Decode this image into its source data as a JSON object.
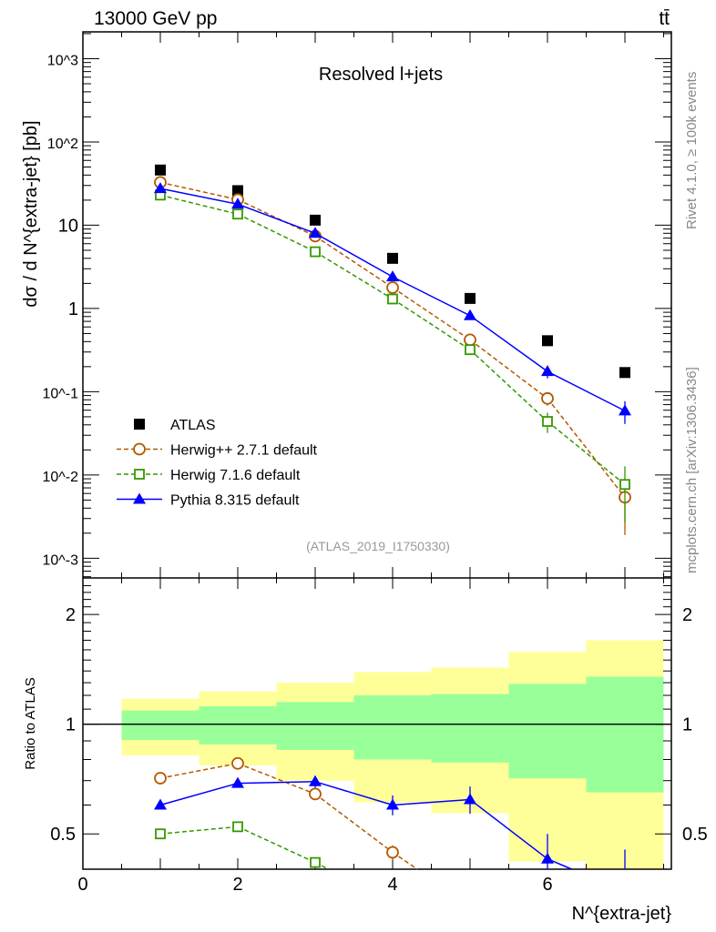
{
  "header": {
    "left": "13000 GeV pp",
    "right": "tt̄"
  },
  "side_labels": {
    "rivet": "Rivet 4.1.0, ≥ 100k events",
    "mcplots": "mcplots.cern.ch [arXiv:1306.3436]"
  },
  "chart_data": [
    {
      "type": "scatter",
      "title": "Resolved l+jets",
      "analysis_id": "(ATLAS_2019_I1750330)",
      "ylabel": "dσ / d N^{extra-jet} [pb]",
      "xlabel": "N^{extra-jet}",
      "yscale": "log",
      "ylim": [
        0.00058,
        2100
      ],
      "xlim": [
        0,
        7.6
      ],
      "ytick_labels": [
        "10^-3",
        "10^-2",
        "10^-1",
        "1",
        "10",
        "10^2",
        "10^3"
      ],
      "xtick_labels": [
        "0",
        "2",
        "4",
        "6"
      ],
      "legend_placement": "bottom-left",
      "x": [
        1,
        2,
        3,
        4,
        5,
        6,
        7
      ],
      "series": [
        {
          "name": "ATLAS",
          "color": "#000000",
          "marker": "square-filled",
          "values": [
            46,
            26,
            11.5,
            4.0,
            1.32,
            0.41,
            0.17
          ]
        },
        {
          "name": "Herwig++ 2.7.1 default",
          "color": "#b35900",
          "marker": "circle-open",
          "dash": true,
          "values": [
            32.7,
            20.3,
            7.4,
            1.78,
            0.42,
            0.083,
            0.0054
          ],
          "errors": [
            0.5,
            0.4,
            0.2,
            0.08,
            0.02,
            0.015,
            0.0035
          ]
        },
        {
          "name": "Herwig 7.1.6 default",
          "color": "#339900",
          "marker": "square-open",
          "dash": true,
          "values": [
            23,
            13.6,
            4.8,
            1.3,
            0.32,
            0.044,
            0.0077
          ],
          "errors": [
            0.4,
            0.3,
            0.15,
            0.06,
            0.02,
            0.012,
            0.005
          ]
        },
        {
          "name": "Pythia 8.315 default",
          "color": "#0000ff",
          "marker": "triangle-filled",
          "values": [
            27.6,
            17.9,
            8.0,
            2.4,
            0.82,
            0.175,
            0.059
          ],
          "errors": [
            0.4,
            0.3,
            0.3,
            0.15,
            0.07,
            0.03,
            0.018
          ]
        }
      ]
    },
    {
      "type": "area",
      "ylabel": "Ratio to ATLAS",
      "yscale": "log",
      "ylim": [
        0.4,
        2.52
      ],
      "ytick_labels": [
        "0.5",
        "1",
        "2"
      ],
      "bin_edges": [
        0.5,
        1.5,
        2.5,
        3.5,
        4.5,
        5.5,
        6.5,
        7.5
      ],
      "band_total": {
        "color": "#ffff99",
        "upper": [
          1.175,
          1.23,
          1.3,
          1.39,
          1.43,
          1.58,
          1.7
        ],
        "lower": [
          0.82,
          0.77,
          0.7,
          0.61,
          0.57,
          0.42,
          0.3
        ]
      },
      "band_stat": {
        "color": "#99ff99",
        "upper": [
          1.09,
          1.12,
          1.15,
          1.2,
          1.21,
          1.29,
          1.35
        ],
        "lower": [
          0.905,
          0.88,
          0.85,
          0.8,
          0.785,
          0.71,
          0.65
        ]
      }
    }
  ]
}
